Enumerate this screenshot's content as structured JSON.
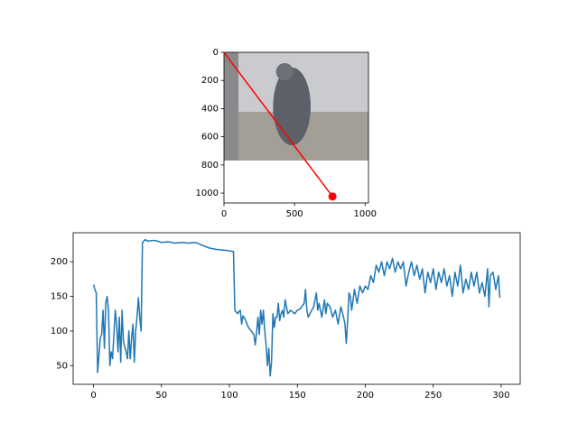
{
  "chart_data": [
    {
      "type": "image_line",
      "image": {
        "width": 1024,
        "height": 768
      },
      "x": [
        0,
        769
      ],
      "values": [
        0,
        1024
      ],
      "color": "#ff0000",
      "xlim": [
        0,
        1024
      ],
      "ylim": [
        1070,
        0
      ],
      "xticks": [
        0,
        500,
        1000
      ],
      "yticks": [
        0,
        200,
        400,
        600,
        800,
        1000
      ]
    },
    {
      "type": "line",
      "color": "#1f77b4",
      "x": [
        0,
        1,
        2,
        3,
        5,
        6,
        7,
        8,
        9,
        10,
        11,
        12,
        13,
        14,
        16,
        17,
        18,
        19,
        20,
        21,
        22,
        24,
        25,
        26,
        27,
        28,
        29,
        30,
        31,
        32,
        33,
        34,
        35,
        36,
        38,
        40,
        45,
        50,
        55,
        60,
        65,
        70,
        75,
        80,
        85,
        90,
        95,
        100,
        102,
        103,
        104,
        106,
        107,
        108,
        109,
        110,
        112,
        114,
        116,
        118,
        119,
        120,
        121,
        122,
        123,
        124,
        125,
        126,
        127,
        128,
        129,
        130,
        131,
        132,
        133,
        134,
        135,
        136,
        137,
        138,
        139,
        140,
        141,
        142,
        143,
        145,
        148,
        150,
        152,
        155,
        156,
        157,
        158,
        160,
        162,
        164,
        165,
        166,
        168,
        170,
        171,
        172,
        174,
        176,
        178,
        180,
        182,
        184,
        185,
        186,
        187,
        188,
        189,
        190,
        192,
        194,
        196,
        198,
        200,
        202,
        204,
        206,
        208,
        210,
        212,
        214,
        216,
        218,
        220,
        222,
        224,
        226,
        228,
        230,
        232,
        234,
        236,
        238,
        240,
        242,
        244,
        246,
        248,
        250,
        252,
        254,
        256,
        258,
        260,
        262,
        264,
        266,
        268,
        270,
        272,
        274,
        276,
        278,
        280,
        282,
        284,
        286,
        288,
        290,
        291,
        292,
        294,
        296,
        298,
        299
      ],
      "values": [
        167,
        160,
        155,
        40,
        90,
        95,
        130,
        75,
        140,
        150,
        130,
        50,
        70,
        60,
        130,
        110,
        70,
        120,
        55,
        130,
        85,
        70,
        60,
        100,
        60,
        90,
        110,
        55,
        100,
        120,
        148,
        120,
        100,
        228,
        232,
        230,
        231,
        228,
        229,
        227,
        228,
        227,
        228,
        224,
        220,
        218,
        217,
        216,
        215,
        215,
        130,
        125,
        128,
        130,
        110,
        122,
        115,
        105,
        100,
        95,
        80,
        98,
        120,
        95,
        130,
        110,
        130,
        100,
        80,
        50,
        75,
        35,
        55,
        125,
        105,
        120,
        120,
        140,
        115,
        125,
        130,
        120,
        145,
        135,
        125,
        130,
        125,
        130,
        132,
        140,
        160,
        130,
        120,
        128,
        135,
        155,
        130,
        140,
        120,
        145,
        125,
        140,
        135,
        120,
        130,
        110,
        135,
        120,
        110,
        82,
        115,
        155,
        150,
        130,
        160,
        140,
        165,
        155,
        165,
        160,
        180,
        170,
        195,
        185,
        200,
        180,
        200,
        190,
        205,
        185,
        200,
        190,
        200,
        165,
        185,
        200,
        180,
        195,
        175,
        190,
        155,
        185,
        170,
        190,
        160,
        185,
        170,
        190,
        165,
        180,
        150,
        185,
        165,
        195,
        155,
        175,
        160,
        185,
        165,
        185,
        155,
        170,
        150,
        190,
        135,
        180,
        185,
        160,
        180,
        148
      ],
      "xlim": [
        -15,
        314
      ],
      "ylim": [
        23,
        242
      ],
      "xticks": [
        0,
        50,
        100,
        150,
        200,
        250,
        300
      ],
      "yticks": [
        50,
        100,
        150,
        200
      ]
    }
  ]
}
